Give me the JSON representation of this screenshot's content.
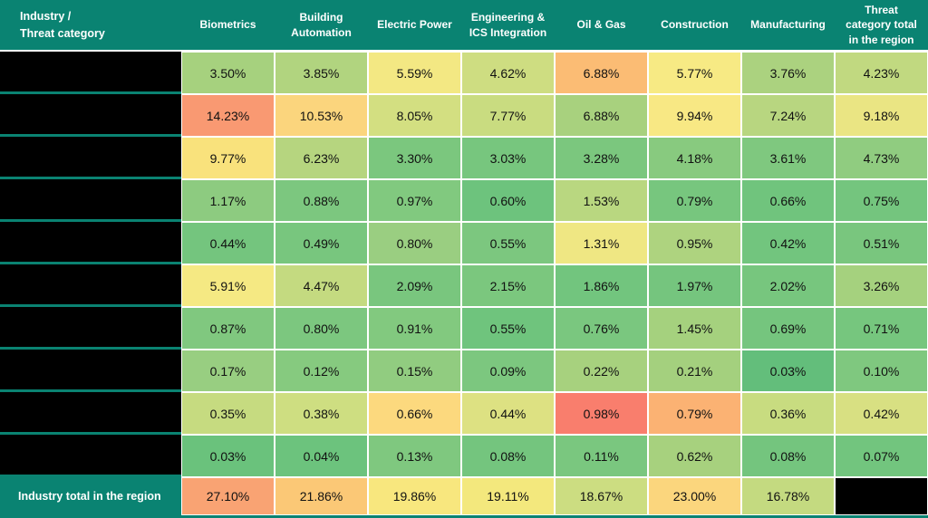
{
  "theme": {
    "teal": "#0A8372",
    "header_text": "#FFFFFF",
    "cell_text": "#111111",
    "grid_line": "#FFFFFF",
    "redacted": "#000000"
  },
  "header": {
    "row_label": "Industry /\nThreat category"
  },
  "footer": {
    "label": "Industry total in the region"
  },
  "chart_data": {
    "type": "heatmap",
    "unit": "%",
    "row_label_header": "Industry / Threat category",
    "row_labels_redacted": true,
    "columns": [
      "Biometrics",
      "Building Automation",
      "Electric Power",
      "Engineering & ICS Integration",
      "Oil & Gas",
      "Construction",
      "Manufacturing",
      "Threat category total in the region"
    ],
    "rows": [
      {
        "label": null,
        "values": [
          3.5,
          3.85,
          5.59,
          4.62,
          6.88,
          5.77,
          3.76,
          4.23
        ],
        "colors": [
          "#A6D17E",
          "#B1D47F",
          "#F3E883",
          "#CEDD81",
          "#FBBC74",
          "#F7EA84",
          "#ABD27F",
          "#C1D980"
        ]
      },
      {
        "label": null,
        "values": [
          14.23,
          10.53,
          8.05,
          7.77,
          6.88,
          9.94,
          7.24,
          9.18
        ],
        "colors": [
          "#F99972",
          "#FBD57D",
          "#D3DF81",
          "#C9DC80",
          "#A8D17E",
          "#F8E884",
          "#B8D680",
          "#EAE583"
        ]
      },
      {
        "label": null,
        "values": [
          9.77,
          6.23,
          3.3,
          3.03,
          3.28,
          4.18,
          3.61,
          4.73
        ],
        "colors": [
          "#F9E27C",
          "#B6D57F",
          "#7BC77E",
          "#77C67E",
          "#7BC77E",
          "#88CA7F",
          "#7FC87F",
          "#90CC80"
        ]
      },
      {
        "label": null,
        "values": [
          1.17,
          0.88,
          0.97,
          0.6,
          1.53,
          0.79,
          0.66,
          0.75
        ],
        "colors": [
          "#8DCB80",
          "#7CC77F",
          "#81C97F",
          "#6DC37D",
          "#B9D780",
          "#77C67E",
          "#70C47D",
          "#74C57E"
        ]
      },
      {
        "label": null,
        "values": [
          0.44,
          0.49,
          0.8,
          0.55,
          1.31,
          0.95,
          0.42,
          0.51
        ],
        "colors": [
          "#74C57E",
          "#78C67E",
          "#9ACE81",
          "#7CC77F",
          "#EFE783",
          "#AED37F",
          "#72C57E",
          "#79C67E"
        ]
      },
      {
        "label": null,
        "values": [
          5.91,
          4.47,
          2.09,
          2.15,
          1.86,
          1.97,
          2.02,
          3.26
        ],
        "colors": [
          "#F5E983",
          "#C4DA80",
          "#79C67E",
          "#7BC77E",
          "#72C57E",
          "#75C57E",
          "#77C67E",
          "#A5D17E"
        ]
      },
      {
        "label": null,
        "values": [
          0.87,
          0.8,
          0.91,
          0.55,
          0.76,
          1.45,
          0.69,
          0.71
        ],
        "colors": [
          "#80C87F",
          "#7CC77F",
          "#82C97F",
          "#6FC47D",
          "#7AC77F",
          "#A5D17E",
          "#75C57E",
          "#76C67E"
        ]
      },
      {
        "label": null,
        "values": [
          0.17,
          0.12,
          0.15,
          0.09,
          0.22,
          0.21,
          0.03,
          0.1
        ],
        "colors": [
          "#98CE81",
          "#86CA7F",
          "#91CC80",
          "#7CC77F",
          "#A7D17E",
          "#A4D07E",
          "#63BE7B",
          "#7FC87F"
        ]
      },
      {
        "label": null,
        "values": [
          0.35,
          0.38,
          0.66,
          0.44,
          0.98,
          0.79,
          0.36,
          0.42
        ],
        "colors": [
          "#C6DB80",
          "#CEDE81",
          "#FCD97E",
          "#DDE182",
          "#F97E6D",
          "#FBB273",
          "#C8DC80",
          "#D8E082"
        ]
      },
      {
        "label": null,
        "values": [
          0.03,
          0.04,
          0.13,
          0.08,
          0.11,
          0.62,
          0.08,
          0.07
        ],
        "colors": [
          "#6AC27C",
          "#6CC37D",
          "#7FC87F",
          "#74C57E",
          "#7AC77F",
          "#A7D17E",
          "#74C57E",
          "#72C57E"
        ]
      }
    ],
    "totals_row": {
      "label": "Industry total in the region",
      "values": [
        27.1,
        21.86,
        19.86,
        19.11,
        18.67,
        23.0,
        16.78,
        null
      ],
      "colors": [
        "#F9A373",
        "#FBC876",
        "#F8E77E",
        "#F3E87D",
        "#CCDD81",
        "#FBD67D",
        "#C4DA80",
        "#000000"
      ],
      "last_cell_redacted": true
    },
    "colorscale": {
      "low": "#63BE7B",
      "mid": "#FFEB84",
      "high": "#F8696B",
      "applied": "per-row"
    },
    "legend_position": "none",
    "grid": true
  }
}
